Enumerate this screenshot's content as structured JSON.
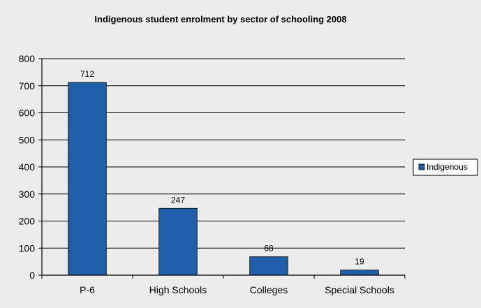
{
  "chart_data": {
    "type": "bar",
    "title": "Indigenous student enrolment by sector of schooling 2008",
    "categories": [
      "P-6",
      "High Schools",
      "Colleges",
      "Special Schools"
    ],
    "series": [
      {
        "name": "Indigenous",
        "values": [
          712,
          247,
          68,
          19
        ],
        "color": "#1f5fa8"
      }
    ],
    "data_labels": [
      "712",
      "247",
      "68",
      "19"
    ],
    "y_ticks": [
      "0",
      "100",
      "200",
      "300",
      "400",
      "500",
      "600",
      "700",
      "800"
    ],
    "ylim": [
      0,
      800
    ],
    "grid": true,
    "legend_position": "right"
  }
}
